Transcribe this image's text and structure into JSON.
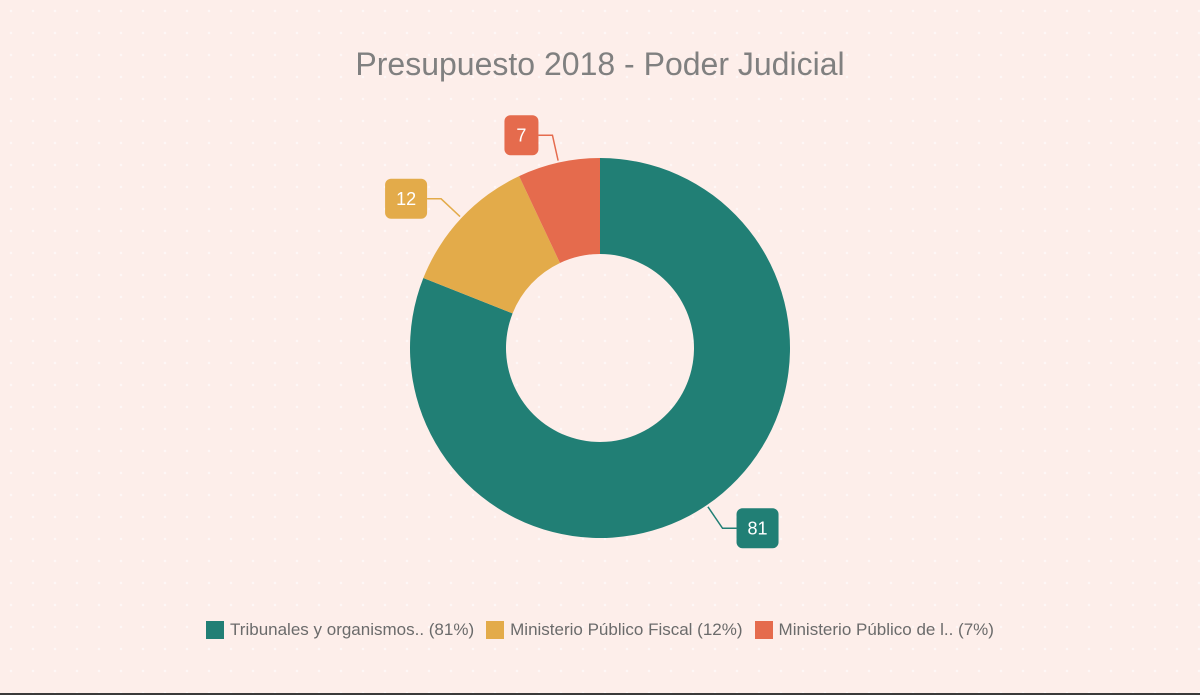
{
  "chart_data": {
    "type": "pie",
    "variant": "donut",
    "title": "Presupuesto 2018 - Poder Judicial",
    "categories": [
      "Tribunales y organismos.. (81%)",
      "Ministerio Público Fiscal (12%)",
      "Ministerio Público de l.. (7%)"
    ],
    "values": [
      81,
      12,
      7
    ],
    "data_labels": [
      "81",
      "12",
      "7"
    ],
    "colors": [
      "#217f75",
      "#e3ab4a",
      "#e56b4d"
    ],
    "legend_position": "bottom"
  }
}
